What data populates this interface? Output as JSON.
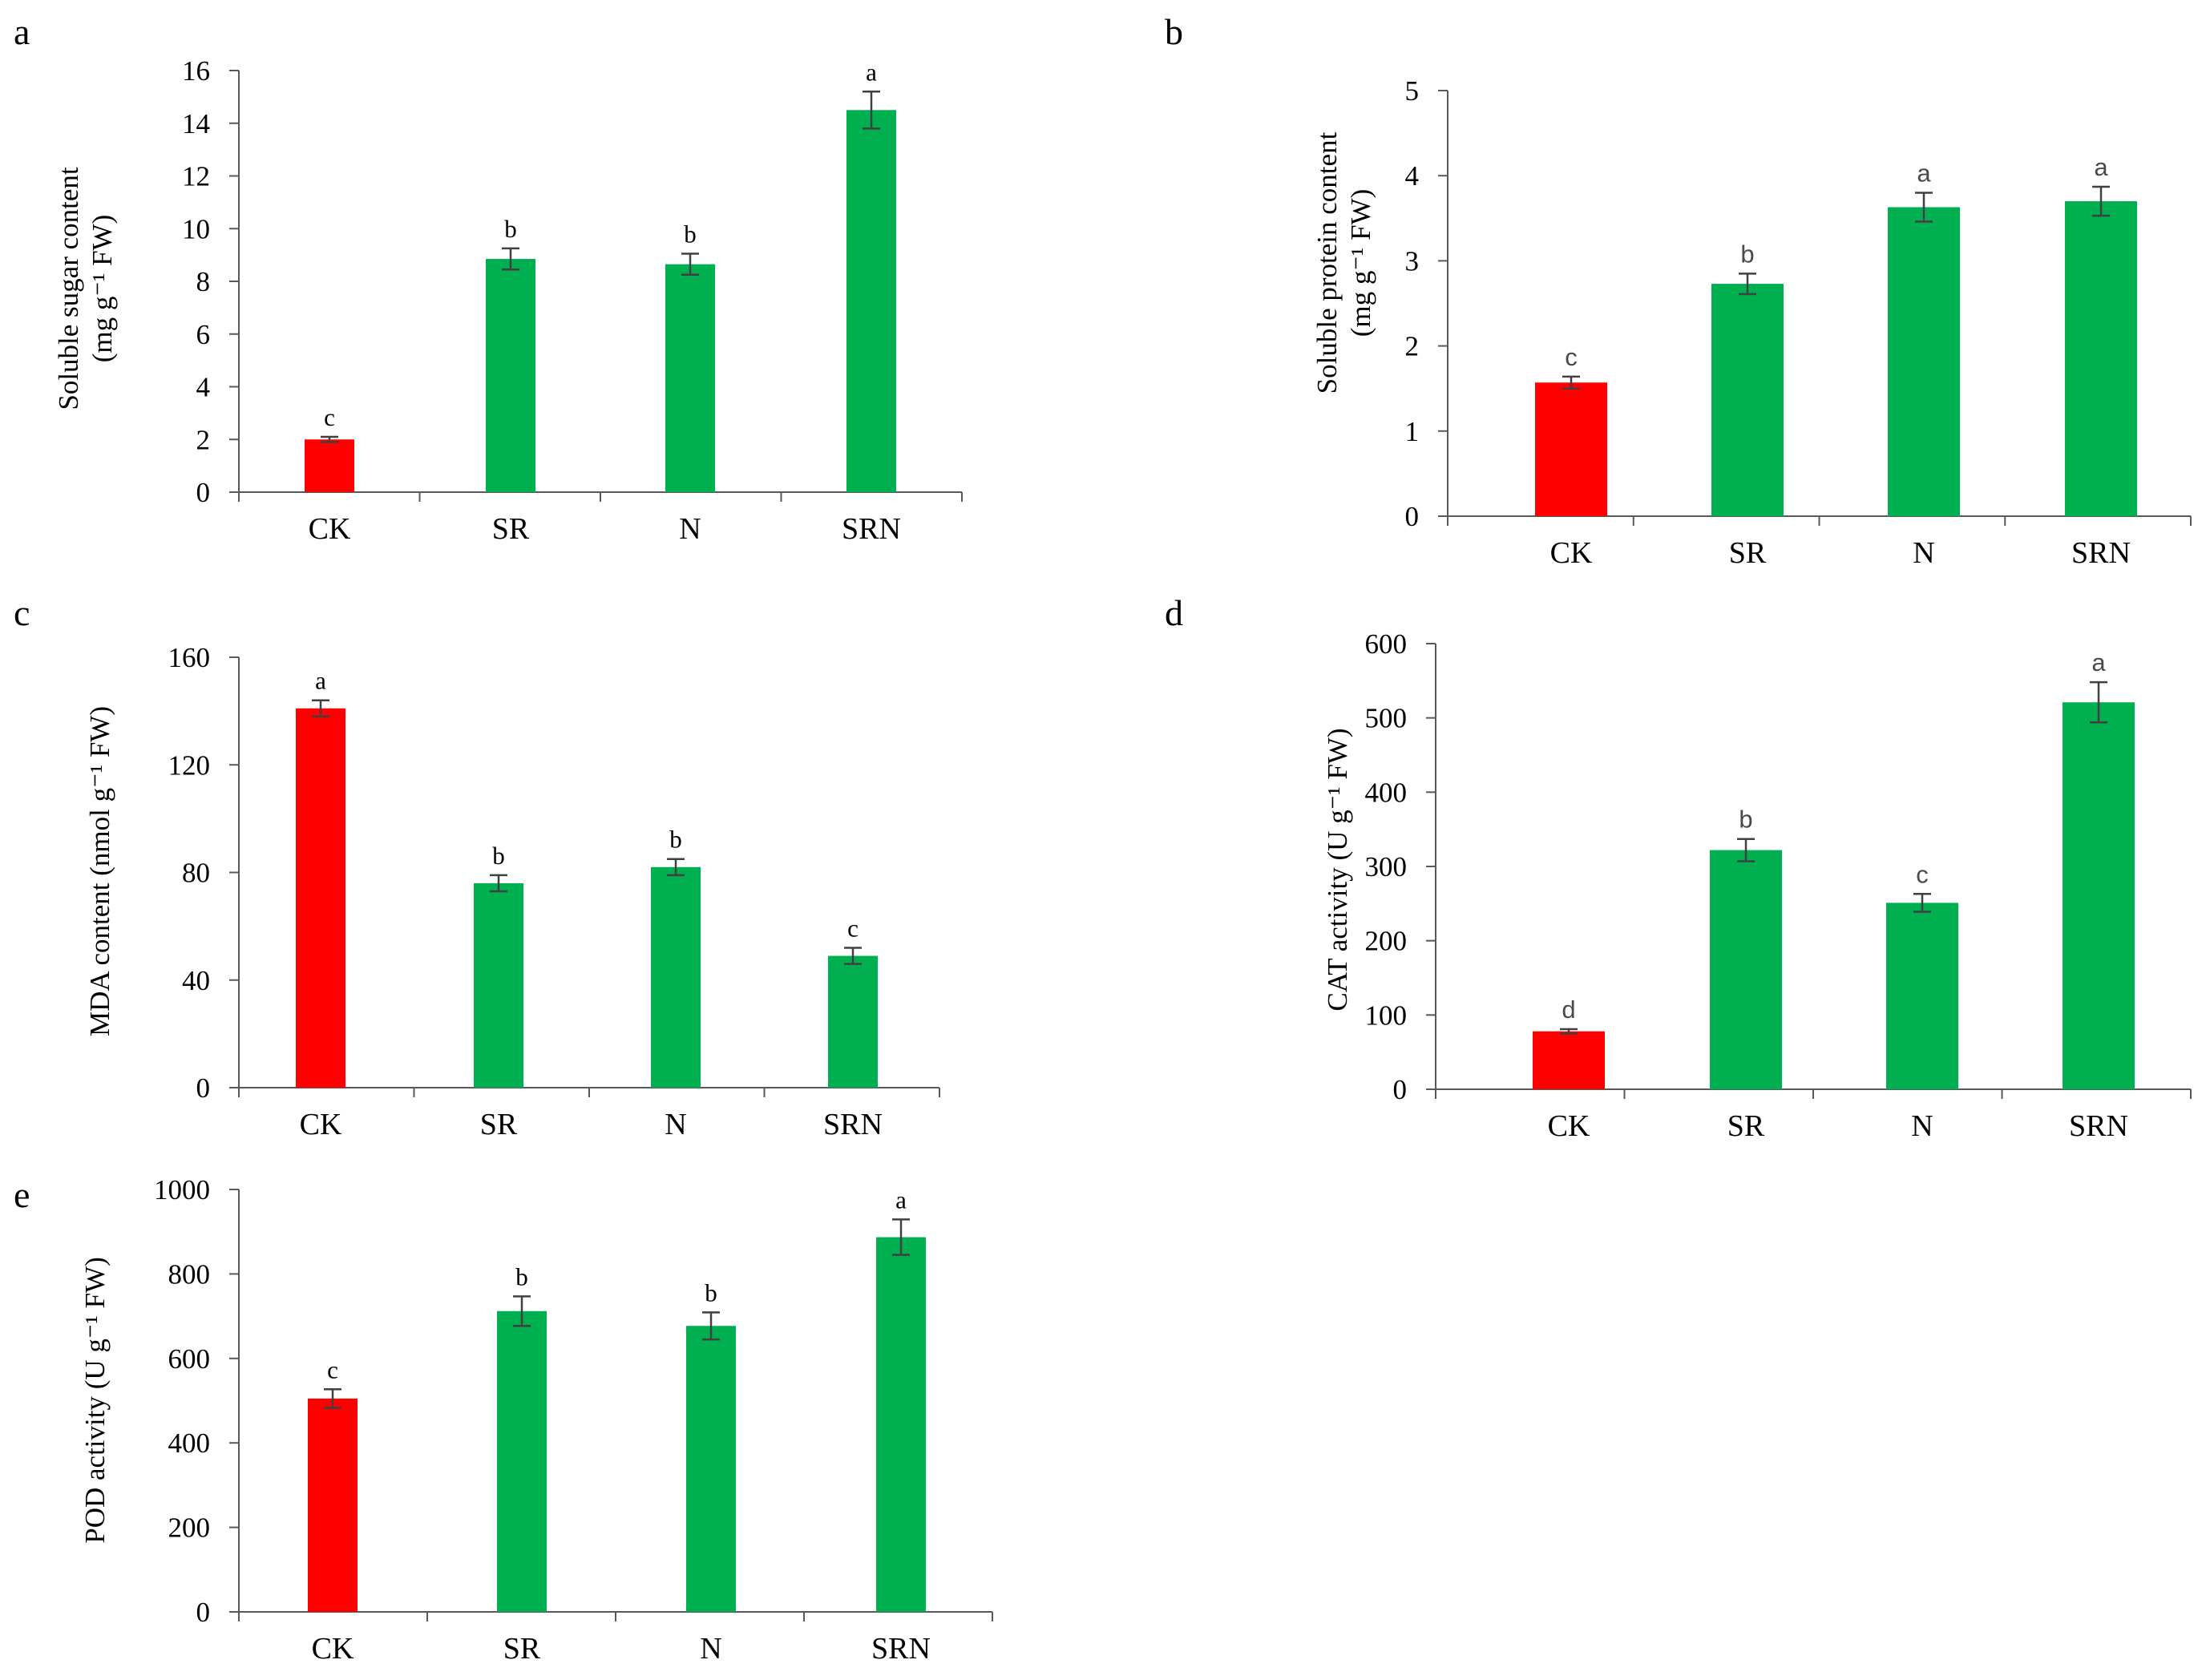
{
  "colors": {
    "control": "#ff0000",
    "treatment": "#00b050",
    "error_bar": "#404040",
    "axis": "#595959"
  },
  "chart_data": [
    {
      "panel": "a",
      "type": "bar",
      "categories": [
        "CK",
        "SR",
        "N",
        "SRN"
      ],
      "values": [
        2.0,
        8.85,
        8.65,
        14.5
      ],
      "errors": [
        0.1,
        0.4,
        0.4,
        0.7
      ],
      "significance": [
        "c",
        "b",
        "b",
        "a"
      ],
      "ylabel_lines": [
        "Soluble sugar content",
        "(mg g⁻¹ FW)"
      ],
      "ylim": [
        0,
        16
      ],
      "yticks": [
        0,
        2,
        4,
        6,
        8,
        10,
        12,
        14,
        16
      ],
      "grid": false
    },
    {
      "panel": "b",
      "type": "bar",
      "categories": [
        "CK",
        "SR",
        "N",
        "SRN"
      ],
      "values": [
        1.57,
        2.73,
        3.63,
        3.7
      ],
      "errors": [
        0.07,
        0.12,
        0.17,
        0.17
      ],
      "significance": [
        "c",
        "b",
        "a",
        "a"
      ],
      "ylabel_lines": [
        "Soluble protein content",
        "(mg g⁻¹ FW)"
      ],
      "ylim": [
        0,
        5
      ],
      "yticks": [
        0,
        1,
        2,
        3,
        4,
        5
      ],
      "grid": false
    },
    {
      "panel": "c",
      "type": "bar",
      "categories": [
        "CK",
        "SR",
        "N",
        "SRN"
      ],
      "values": [
        141,
        76,
        82,
        49
      ],
      "errors": [
        3,
        3,
        3,
        3
      ],
      "significance": [
        "a",
        "b",
        "b",
        "c"
      ],
      "ylabel_lines": [
        "MDA content (nmol g⁻¹ FW)"
      ],
      "ylim": [
        0,
        160
      ],
      "yticks": [
        0,
        40,
        80,
        120,
        160
      ],
      "grid": false
    },
    {
      "panel": "d",
      "type": "bar",
      "categories": [
        "CK",
        "SR",
        "N",
        "SRN"
      ],
      "values": [
        78,
        322,
        251,
        521
      ],
      "errors": [
        3,
        15,
        12,
        27
      ],
      "significance": [
        "d",
        "b",
        "c",
        "a"
      ],
      "ylabel_lines": [
        "CAT  activity (U g⁻¹ FW)"
      ],
      "ylim": [
        0,
        600
      ],
      "yticks": [
        0,
        100,
        200,
        300,
        400,
        500,
        600
      ],
      "grid": false
    },
    {
      "panel": "e",
      "type": "bar",
      "categories": [
        "CK",
        "SR",
        "N",
        "SRN"
      ],
      "values": [
        505,
        712,
        677,
        887
      ],
      "errors": [
        22,
        35,
        32,
        42
      ],
      "significance": [
        "c",
        "b",
        "b",
        "a"
      ],
      "ylabel_lines": [
        "POD activity (U g⁻¹ FW)"
      ],
      "ylim": [
        0,
        1000
      ],
      "yticks": [
        0,
        200,
        400,
        600,
        800,
        1000
      ],
      "grid": false
    }
  ]
}
